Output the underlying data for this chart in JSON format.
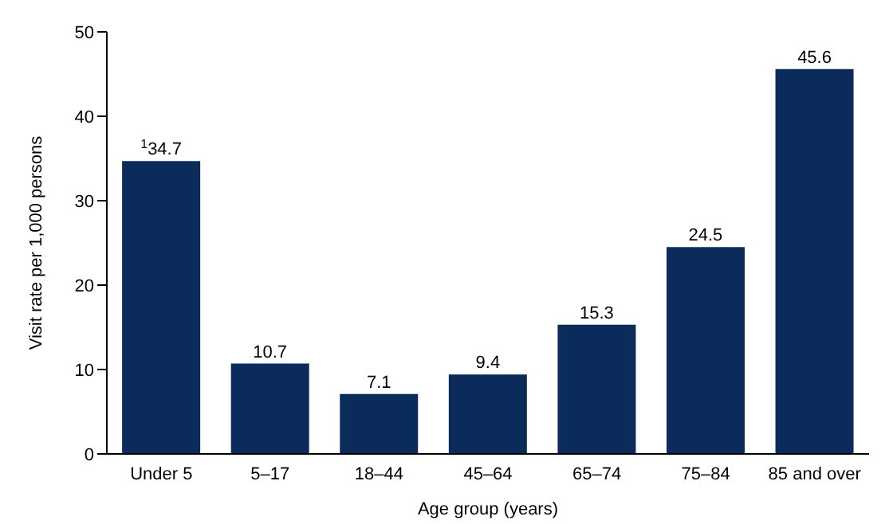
{
  "chart_data": {
    "type": "bar",
    "xlabel": "Age group (years)",
    "ylabel": "Visit rate per 1,000 persons",
    "categories": [
      "Under 5",
      "5–17",
      "18–44",
      "45–64",
      "65–74",
      "75–84",
      "85 and over"
    ],
    "values": [
      34.7,
      10.7,
      7.1,
      9.4,
      15.3,
      24.5,
      45.6
    ],
    "value_labels": [
      "$^{1}$34.7",
      "10.7",
      "7.1",
      "9.4",
      "15.3",
      "24.5",
      "45.6"
    ],
    "color": "#0b2b5b",
    "ylim": [
      0,
      50
    ],
    "yticks": [
      0,
      10,
      20,
      30,
      40,
      50
    ],
    "grid": false,
    "legend": false
  }
}
